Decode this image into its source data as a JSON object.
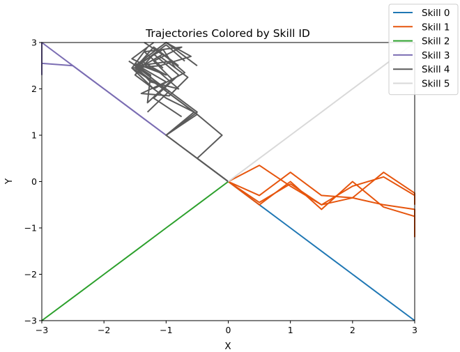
{
  "chart_data": {
    "type": "line",
    "title": "Trajectories Colored by Skill ID",
    "xlabel": "X",
    "ylabel": "Y",
    "xlim": [
      -3,
      3
    ],
    "ylim": [
      -3,
      3
    ],
    "xticks": [
      -3,
      -2,
      -1,
      0,
      1,
      2,
      3
    ],
    "yticks": [
      -3,
      -2,
      -1,
      0,
      1,
      2,
      3
    ],
    "tick_labels": {
      "x": [
        "−3",
        "−2",
        "−1",
        "0",
        "1",
        "2",
        "3"
      ],
      "y": [
        "−3",
        "−2",
        "−1",
        "0",
        "1",
        "2",
        "3"
      ]
    },
    "grid": false,
    "legend_position": "top-right",
    "series": [
      {
        "name": "Skill 0",
        "color": "#1f77b4",
        "trajectories": [
          [
            [
              0,
              0
            ],
            [
              0.5,
              -0.5
            ],
            [
              1,
              -1
            ],
            [
              1.5,
              -1.5
            ],
            [
              2,
              -2
            ],
            [
              2.5,
              -2.5
            ],
            [
              3,
              -3
            ]
          ]
        ]
      },
      {
        "name": "Skill 1",
        "color": "#e6550d",
        "trajectories": [
          [
            [
              0,
              0
            ],
            [
              0.5,
              0.35
            ],
            [
              1,
              -0.1
            ],
            [
              1.5,
              -0.5
            ],
            [
              2,
              -0.35
            ],
            [
              2.5,
              0.2
            ],
            [
              3,
              -0.25
            ],
            [
              3,
              -0.35
            ]
          ],
          [
            [
              0,
              0
            ],
            [
              0.5,
              -0.3
            ],
            [
              1,
              0.2
            ],
            [
              1.5,
              -0.3
            ],
            [
              2,
              -0.35
            ],
            [
              2.5,
              -0.5
            ],
            [
              3,
              -0.6
            ],
            [
              3,
              -0.9
            ]
          ],
          [
            [
              0,
              0
            ],
            [
              0.5,
              -0.5
            ],
            [
              1,
              0
            ],
            [
              1.5,
              -0.6
            ],
            [
              2,
              0
            ],
            [
              2.5,
              -0.55
            ],
            [
              3,
              -0.75
            ],
            [
              3,
              -1.2
            ]
          ],
          [
            [
              0,
              0
            ],
            [
              0.5,
              -0.45
            ],
            [
              1,
              -0.05
            ],
            [
              1.5,
              -0.5
            ],
            [
              2,
              -0.1
            ],
            [
              2.5,
              0.1
            ],
            [
              3,
              -0.3
            ],
            [
              3,
              -0.5
            ]
          ]
        ]
      },
      {
        "name": "Skill 2",
        "color": "#2ca02c",
        "trajectories": [
          [
            [
              0,
              0
            ],
            [
              -0.5,
              -0.5
            ],
            [
              -1,
              -1
            ],
            [
              -1.5,
              -1.5
            ],
            [
              -2,
              -2
            ],
            [
              -2.5,
              -2.5
            ],
            [
              -3,
              -3
            ]
          ]
        ]
      },
      {
        "name": "Skill 3",
        "color": "#7b6db3",
        "trajectories": [
          [
            [
              -1,
              1
            ],
            [
              -1.5,
              1.5
            ],
            [
              -2,
              2
            ],
            [
              -2.5,
              2.5
            ],
            [
              -3,
              3
            ],
            [
              -3,
              2.3
            ]
          ],
          [
            [
              -3,
              2.55
            ],
            [
              -2.5,
              2.5
            ],
            [
              -2,
              2
            ],
            [
              -1.5,
              1.5
            ],
            [
              -1,
              1
            ]
          ]
        ]
      },
      {
        "name": "Skill 4",
        "color": "#5a5a5a",
        "trajectories": [
          [
            [
              0,
              0
            ],
            [
              -0.5,
              0.5
            ],
            [
              -1,
              1
            ],
            [
              -0.5,
              1.5
            ],
            [
              -1,
              2
            ],
            [
              -1.5,
              2.5
            ],
            [
              -1,
              3
            ],
            [
              -0.5,
              2.5
            ]
          ],
          [
            [
              0,
              0
            ],
            [
              -0.5,
              0.5
            ],
            [
              -1,
              1
            ],
            [
              -0.5,
              1.45
            ],
            [
              -1,
              1.95
            ],
            [
              -1.5,
              2.45
            ],
            [
              -1.2,
              2.9
            ],
            [
              -0.8,
              2.5
            ]
          ],
          [
            [
              0,
              0
            ],
            [
              -0.5,
              0.5
            ],
            [
              -0.1,
              1.0
            ],
            [
              -0.5,
              1.45
            ],
            [
              -1.0,
              1.95
            ],
            [
              -1.45,
              2.5
            ],
            [
              -1.0,
              2.95
            ],
            [
              -0.7,
              2.6
            ]
          ],
          [
            [
              -1,
              1
            ],
            [
              -0.55,
              1.5
            ],
            [
              -1.0,
              1.8
            ],
            [
              -1.5,
              2.3
            ],
            [
              -1.2,
              2.75
            ],
            [
              -0.8,
              2.3
            ],
            [
              -1.2,
              1.8
            ],
            [
              -0.75,
              1.4
            ]
          ],
          [
            [
              -1.5,
              2.55
            ],
            [
              -1.0,
              2.3
            ],
            [
              -1.4,
              2.6
            ],
            [
              -1.0,
              3.0
            ],
            [
              -0.6,
              2.7
            ],
            [
              -1.1,
              2.5
            ],
            [
              -1.55,
              2.45
            ],
            [
              -1.15,
              2.1
            ]
          ],
          [
            [
              -1.6,
              2.6
            ],
            [
              -1.25,
              2.3
            ],
            [
              -1.3,
              1.7
            ],
            [
              -0.9,
              2.2
            ],
            [
              -1.2,
              2.6
            ],
            [
              -0.75,
              2.9
            ],
            [
              -1.35,
              2.8
            ],
            [
              -1.05,
              2.45
            ]
          ],
          [
            [
              -1.3,
              1.5
            ],
            [
              -0.95,
              1.95
            ],
            [
              -1.5,
              2.4
            ],
            [
              -1.05,
              2.75
            ],
            [
              -0.7,
              2.35
            ],
            [
              -1.2,
              2.0
            ],
            [
              -1.55,
              2.45
            ],
            [
              -1.3,
              2.9
            ]
          ],
          [
            [
              -1.35,
              3.0
            ],
            [
              -0.9,
              2.6
            ],
            [
              -1.45,
              2.5
            ],
            [
              -1.0,
              2.15
            ],
            [
              -1.4,
              1.9
            ],
            [
              -0.95,
              1.85
            ],
            [
              -0.65,
              2.25
            ],
            [
              -1.1,
              2.7
            ]
          ],
          [
            [
              -1.2,
              3.0
            ],
            [
              -1.55,
              2.65
            ],
            [
              -1.1,
              2.35
            ],
            [
              -0.8,
              2.0
            ],
            [
              -1.25,
              2.15
            ],
            [
              -1.5,
              2.5
            ],
            [
              -1.05,
              2.85
            ],
            [
              -0.85,
              2.45
            ]
          ]
        ]
      },
      {
        "name": "Skill 5",
        "color": "#d9d9d9",
        "trajectories": [
          [
            [
              0,
              0
            ],
            [
              0.5,
              0.5
            ],
            [
              1,
              1
            ],
            [
              1.5,
              1.5
            ],
            [
              2,
              2
            ],
            [
              2.5,
              2.5
            ],
            [
              3,
              3
            ]
          ]
        ]
      }
    ]
  }
}
